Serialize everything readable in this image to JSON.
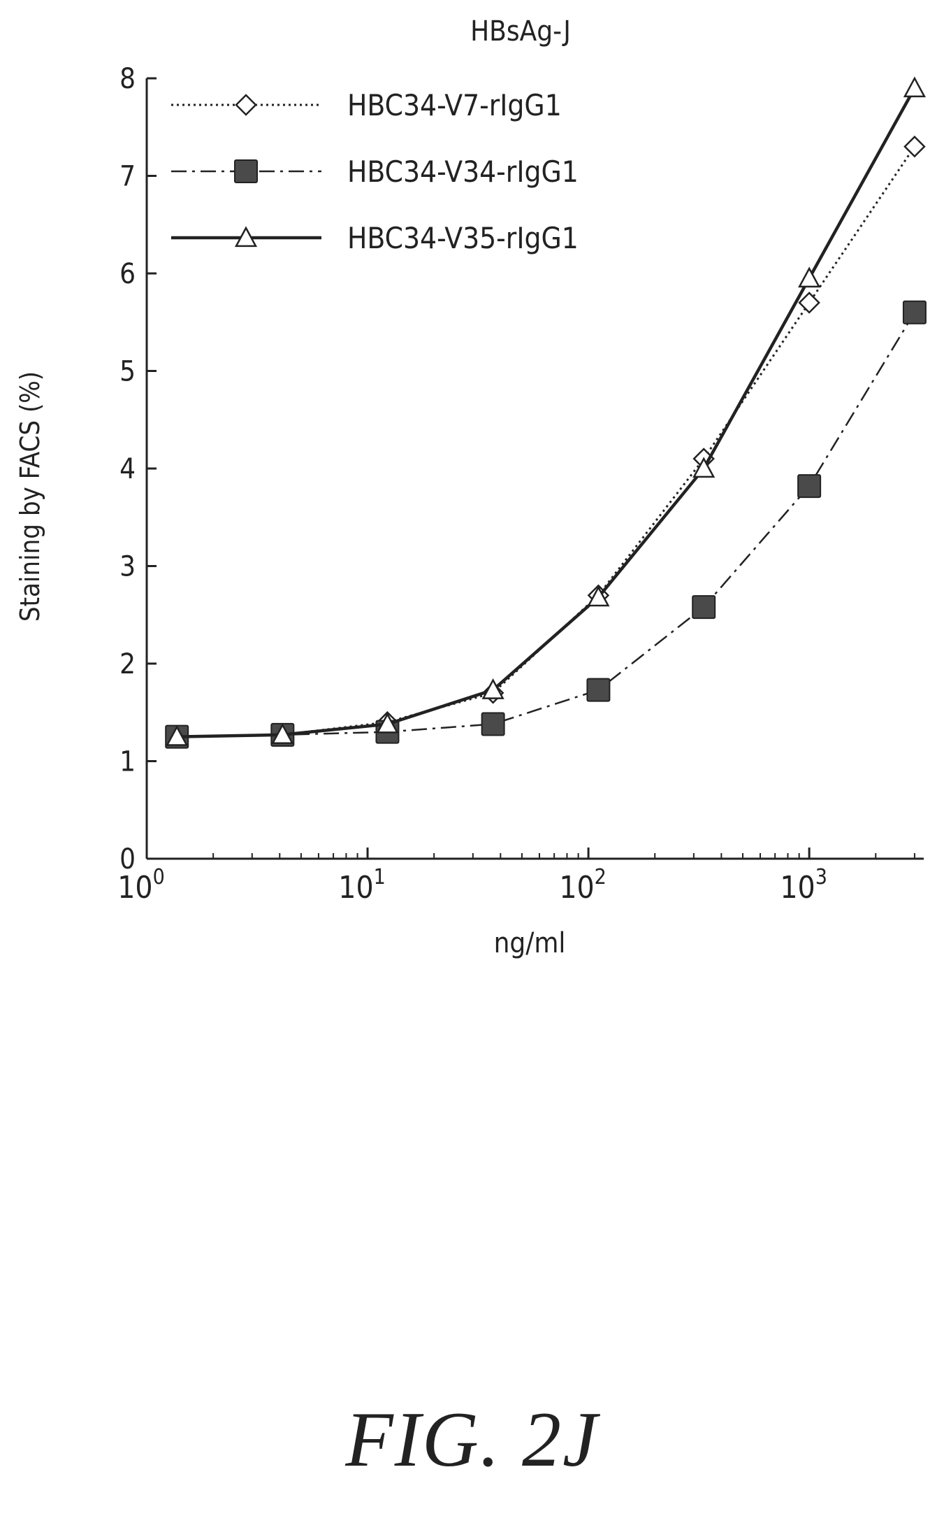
{
  "figure_label": "FIG. 2J",
  "chart_data": {
    "type": "line",
    "title": "HBsAg-J",
    "xlabel": "ng/ml",
    "ylabel": "Staining by FACS (%)",
    "x_scale": "log",
    "xlim": [
      1,
      3300
    ],
    "ylim": [
      0,
      8
    ],
    "x_ticks": [
      1,
      10,
      100,
      1000
    ],
    "x_tick_labels": [
      {
        "base": "10",
        "exp": "0"
      },
      {
        "base": "10",
        "exp": "1"
      },
      {
        "base": "10",
        "exp": "2"
      },
      {
        "base": "10",
        "exp": "3"
      }
    ],
    "y_ticks": [
      0,
      1,
      2,
      3,
      4,
      5,
      6,
      7,
      8
    ],
    "grid": false,
    "legend_position": "top-left",
    "x": [
      1.37,
      4.12,
      12.3,
      37,
      111,
      333,
      1000,
      3000
    ],
    "series": [
      {
        "name": "HBC34-V7-rIgG1",
        "marker": "diamond-open",
        "line": "dotted",
        "values": [
          1.25,
          1.27,
          1.4,
          1.7,
          2.7,
          4.1,
          5.7,
          7.3
        ]
      },
      {
        "name": "HBC34-V34-rIgG1",
        "marker": "square-filled",
        "line": "dash-dot",
        "values": [
          1.25,
          1.27,
          1.3,
          1.38,
          1.73,
          2.58,
          3.82,
          5.6
        ]
      },
      {
        "name": "HBC34-V35-rIgG1",
        "marker": "triangle-open",
        "line": "solid",
        "values": [
          1.25,
          1.27,
          1.38,
          1.73,
          2.68,
          4.0,
          5.95,
          7.9
        ]
      }
    ],
    "colors": {
      "ink": "#222222",
      "square_fill": "#4a4a4a"
    }
  }
}
